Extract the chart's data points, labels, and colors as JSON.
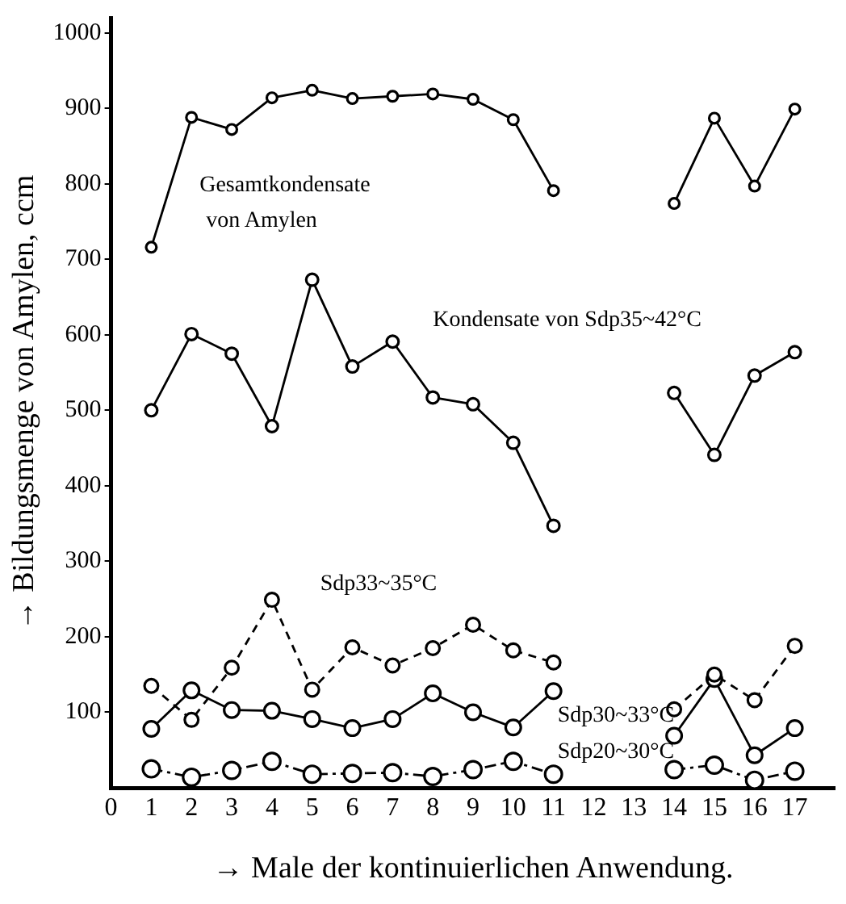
{
  "chart_data": {
    "type": "line",
    "xlabel": "→ Male der kontinuierlichen Anwendung.",
    "ylabel": "→ Bildungsmenge von Amylen, ccm",
    "x": [
      1,
      2,
      3,
      4,
      5,
      6,
      7,
      8,
      9,
      10,
      11,
      12,
      13,
      14,
      15,
      16,
      17
    ],
    "series": [
      {
        "name": "Gesamtkondensate von Amylen",
        "color": "#000000",
        "line_style": "solid",
        "values": [
          716,
          888,
          872,
          914,
          924,
          913,
          916,
          919,
          912,
          885,
          791,
          null,
          null,
          774,
          887,
          797,
          899
        ]
      },
      {
        "name": "Kondensate von Sdp35~42°C",
        "color": "#000000",
        "line_style": "solid",
        "values": [
          500,
          601,
          575,
          479,
          673,
          558,
          591,
          517,
          508,
          457,
          347,
          null,
          null,
          523,
          441,
          546,
          577
        ]
      },
      {
        "name": "Sdp33~35°C",
        "color": "#000000",
        "line_style": "dashed",
        "values": [
          135,
          90,
          159,
          249,
          130,
          186,
          162,
          185,
          216,
          182,
          166,
          null,
          null,
          104,
          150,
          116,
          188
        ]
      },
      {
        "name": "Sdp30~33°C",
        "color": "#000000",
        "line_style": "solid",
        "values": [
          78,
          129,
          103,
          102,
          91,
          79,
          91,
          125,
          100,
          80,
          128,
          null,
          null,
          69,
          144,
          43,
          79
        ]
      },
      {
        "name": "Sdp20~30°C",
        "color": "#000000",
        "line_style": "dotted",
        "values": [
          25,
          14,
          23,
          35,
          18,
          19,
          20,
          15,
          24,
          35,
          18,
          null,
          null,
          24,
          30,
          10,
          22
        ]
      }
    ],
    "xlim": [
      0,
      18
    ],
    "xticks": [
      0,
      1,
      2,
      3,
      4,
      5,
      6,
      7,
      8,
      9,
      10,
      11,
      12,
      13,
      14,
      15,
      16,
      17
    ],
    "ylim": [
      0,
      1020
    ],
    "yticks": [
      100,
      200,
      300,
      400,
      500,
      600,
      700,
      800,
      900,
      1000
    ],
    "marker": "circle",
    "grid": false,
    "legend": false
  }
}
